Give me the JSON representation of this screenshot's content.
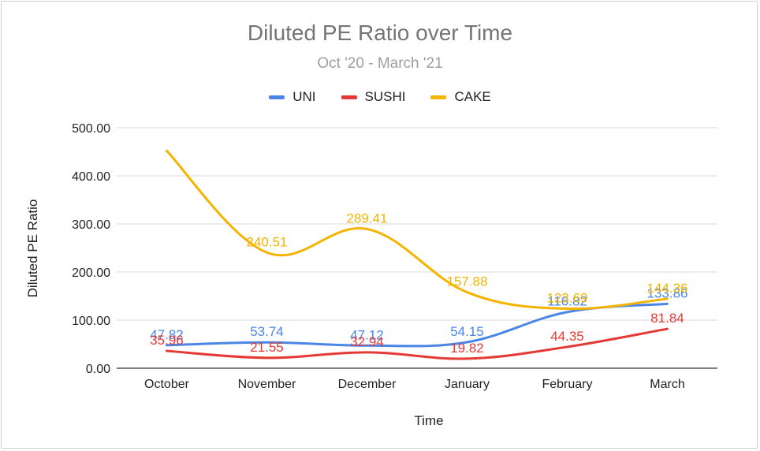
{
  "chart_data": {
    "type": "line",
    "title": "Diluted PE Ratio over Time",
    "subtitle": "Oct '20 - March '21",
    "xlabel": "Time",
    "ylabel": "Diluted PE Ratio",
    "ylim": [
      0,
      500
    ],
    "yticks": [
      "0.00",
      "100.00",
      "200.00",
      "300.00",
      "400.00",
      "500.00"
    ],
    "yticks_values": [
      0,
      100,
      200,
      300,
      400,
      500
    ],
    "grid": true,
    "legend_position": "top",
    "categories": [
      "October",
      "November",
      "December",
      "January",
      "February",
      "March"
    ],
    "series": [
      {
        "name": "UNI",
        "color": "#4a86e8",
        "values": [
          47.82,
          53.74,
          47.12,
          54.15,
          116.82,
          133.86
        ],
        "labels": [
          "47.82",
          "53.74",
          "47.12",
          "54.15",
          "116.82",
          "133.86"
        ]
      },
      {
        "name": "SUSHI",
        "color": "#e53935",
        "values": [
          35.96,
          21.55,
          32.94,
          19.82,
          44.35,
          81.84
        ],
        "labels": [
          "35.96",
          "21.55",
          "32.94",
          "19.82",
          "44.35",
          "81.84"
        ]
      },
      {
        "name": "CAKE",
        "color": "#f4b400",
        "values": [
          452,
          240.51,
          289.41,
          157.88,
          123.69,
          144.36
        ],
        "labels": [
          "",
          "240.51",
          "289.41",
          "157.88",
          "123.69",
          "144.36"
        ]
      }
    ]
  }
}
